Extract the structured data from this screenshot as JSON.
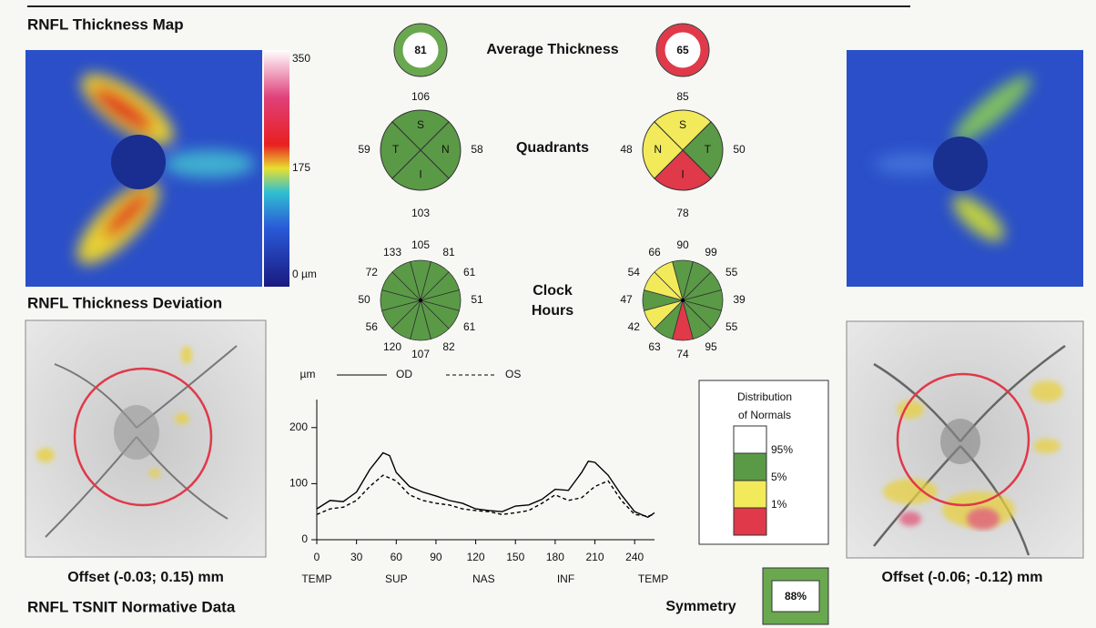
{
  "labels": {
    "map_title": "RNFL Thickness Map",
    "deviation_title": "RNFL Thickness Deviation",
    "tsnit_title": "RNFL TSNIT Normative Data",
    "average": "Average Thickness",
    "quadrants": "Quadrants",
    "clock_hours": [
      "Clock",
      "Hours"
    ]
  },
  "colorbar": {
    "lim": [
      0,
      350
    ],
    "ticks": [
      350,
      175,
      {
        "value": 0,
        "label": "0 µm"
      }
    ],
    "color": "#5a9a46"
  },
  "od": {
    "average": 81,
    "average_color": "#6aa84f",
    "offset": "Offset (-0.03; 0.15) mm",
    "quadrants": [
      {
        "letter": "S",
        "value": 106,
        "color": "#5a9a46"
      },
      {
        "letter": "N",
        "value": 58,
        "color": "#5a9a46"
      },
      {
        "letter": "I",
        "value": 103,
        "color": "#5a9a46"
      },
      {
        "letter": "T",
        "value": 59,
        "color": "#5a9a46"
      }
    ],
    "clock_hours": [
      {
        "value": 105,
        "color": "#5a9a46"
      },
      {
        "value": 81,
        "color": "#5a9a46"
      },
      {
        "value": 61,
        "color": "#5a9a46"
      },
      {
        "value": 51,
        "color": "#5a9a46"
      },
      {
        "value": 61,
        "color": "#5a9a46"
      },
      {
        "value": 82,
        "color": "#5a9a46"
      },
      {
        "value": 107,
        "color": "#5a9a46"
      },
      {
        "value": 120,
        "color": "#5a9a46"
      },
      {
        "value": 56,
        "color": "#5a9a46"
      },
      {
        "value": 50,
        "color": "#5a9a46"
      },
      {
        "value": 72,
        "color": "#5a9a46"
      },
      {
        "value": 133,
        "color": "#5a9a46"
      }
    ]
  },
  "os": {
    "average": 65,
    "average_color": "#e0394a",
    "offset": "Offset (-0.06; -0.12) mm",
    "quadrants": [
      {
        "letter": "S",
        "value": 85,
        "color": "#f2ea5a"
      },
      {
        "letter": "T",
        "value": 50,
        "color": "#5a9a46"
      },
      {
        "letter": "I",
        "value": 78,
        "color": "#e0394a"
      },
      {
        "letter": "N",
        "value": 48,
        "color": "#f2ea5a"
      }
    ],
    "clock_hours": [
      {
        "value": 90,
        "color": "#5a9a46"
      },
      {
        "value": 99,
        "color": "#5a9a46"
      },
      {
        "value": 55,
        "color": "#5a9a46"
      },
      {
        "value": 39,
        "color": "#5a9a46"
      },
      {
        "value": 55,
        "color": "#5a9a46"
      },
      {
        "value": 95,
        "color": "#5a9a46"
      },
      {
        "value": 74,
        "color": "#e0394a"
      },
      {
        "value": 63,
        "color": "#5a9a46"
      },
      {
        "value": 42,
        "color": "#f2ea5a"
      },
      {
        "value": 47,
        "color": "#5a9a46"
      },
      {
        "value": 54,
        "color": "#f2ea5a"
      },
      {
        "value": 66,
        "color": "#f2ea5a"
      }
    ]
  },
  "chart_data": {
    "type": "line",
    "ylabel": "µm",
    "x": [
      0,
      10,
      20,
      30,
      40,
      50,
      55,
      60,
      70,
      80,
      90,
      100,
      110,
      120,
      130,
      140,
      150,
      160,
      170,
      180,
      190,
      200,
      205,
      210,
      220,
      230,
      240,
      250,
      255
    ],
    "series": [
      {
        "name": "OD",
        "color": "#000000",
        "style": "solid",
        "values": [
          55,
          70,
          68,
          85,
          125,
          155,
          150,
          120,
          95,
          85,
          78,
          70,
          65,
          55,
          52,
          50,
          60,
          62,
          72,
          90,
          88,
          120,
          140,
          138,
          115,
          80,
          50,
          40,
          48
        ]
      },
      {
        "name": "OS",
        "color": "#000000",
        "style": "dashed",
        "values": [
          45,
          55,
          58,
          70,
          95,
          115,
          110,
          105,
          80,
          70,
          65,
          62,
          55,
          52,
          50,
          45,
          48,
          52,
          65,
          80,
          70,
          75,
          85,
          95,
          105,
          70,
          45,
          42,
          45
        ]
      }
    ],
    "xlim": [
      0,
      255
    ],
    "ylim": [
      0,
      250
    ],
    "xticks": [
      0,
      30,
      60,
      90,
      120,
      150,
      180,
      210,
      240
    ],
    "yticks": [
      0,
      100,
      200
    ],
    "xregions": [
      {
        "value": 0,
        "label": "TEMP"
      },
      {
        "value": 60,
        "label": "SUP"
      },
      {
        "value": 126,
        "label": "NAS"
      },
      {
        "value": 188,
        "label": "INF"
      },
      {
        "value": 254,
        "label": "TEMP"
      }
    ]
  },
  "normals": {
    "title": [
      "Distribution",
      "of Normals"
    ],
    "items": [
      {
        "color": "#ffffff",
        "label": "95%"
      },
      {
        "color": "#5a9a46",
        "label": "5%"
      },
      {
        "color": "#f2ea5a",
        "label": "1%"
      },
      {
        "color": "#e0394a"
      }
    ]
  },
  "symmetry": {
    "label": "Symmetry",
    "value": "88%",
    "color": "#6aa84f"
  }
}
